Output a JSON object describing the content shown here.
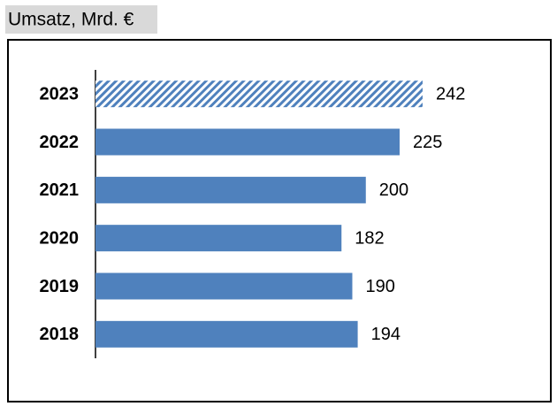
{
  "chart_data": {
    "type": "hbar",
    "title": "Umsatz, Mrd. €",
    "categories": [
      "2023",
      "2022",
      "2021",
      "2020",
      "2019",
      "2018"
    ],
    "values": [
      242,
      225,
      200,
      182,
      190,
      194
    ],
    "color": "#4f81bd",
    "hatched": [
      true,
      false,
      false,
      false,
      false,
      false
    ],
    "xlim": [
      0,
      260
    ]
  }
}
